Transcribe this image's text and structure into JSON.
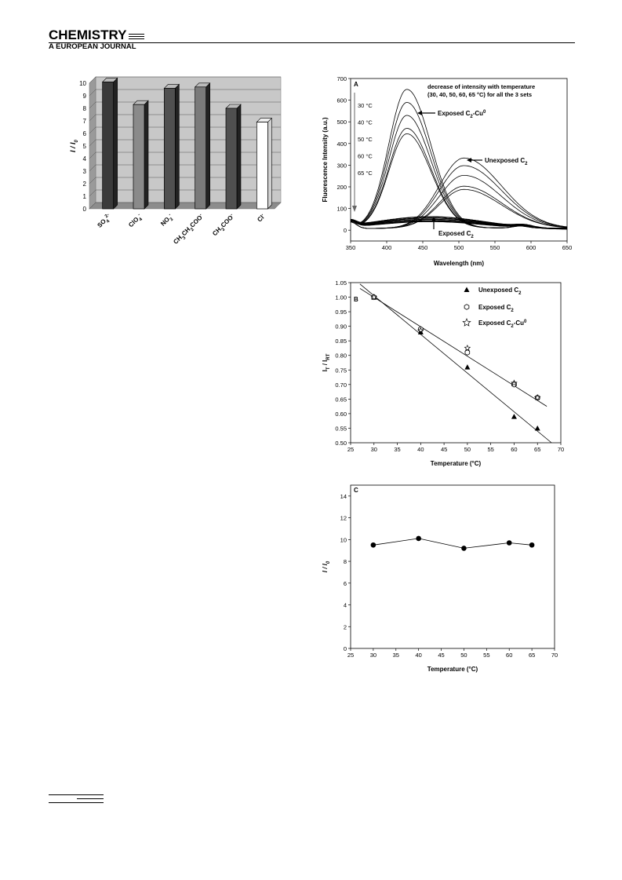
{
  "header": {
    "title": "CHEMISTRY",
    "subtitle": "A EUROPEAN JOURNAL"
  },
  "chart_data": [
    {
      "type": "bar",
      "panel": "3d-bar",
      "categories": [
        "SO",
        "ClO",
        "NO",
        "CH₃CH₂COO⁻",
        "CH₃COO",
        "Cl⁻"
      ],
      "category_labels": [
        {
          "base": "SO",
          "sup": "2-",
          "sub": "4",
          "full": "SO42-"
        },
        {
          "base": "ClO",
          "sup": "-",
          "sub": "4",
          "full": "ClO4-"
        },
        {
          "base": "NO",
          "sup": "-",
          "sub": "3",
          "full": "NO3-"
        },
        {
          "base": "CH",
          "full": "CH3CH2COO-",
          "mid": "CH",
          "mid2": "COO",
          "sup": "-"
        },
        {
          "base": "CH",
          "full": "CH3COO-",
          "mid2": "COO",
          "sup": "-"
        },
        {
          "base": "Cl",
          "sup": "-",
          "full": "Cl-"
        }
      ],
      "values": [
        10.1,
        8.3,
        9.6,
        9.7,
        8.0,
        6.9
      ],
      "colors": [
        "#3a3a3a",
        "#8a8a8a",
        "#505050",
        "#7a7a7a",
        "#505050",
        "#ffffff"
      ],
      "ylabel": "I / I₀",
      "ylabel_main": "I / I",
      "ylabel_sub": "0",
      "ylim": [
        0,
        10
      ],
      "yticks": [
        "0",
        "1",
        "2",
        "3",
        "4",
        "5",
        "6",
        "7",
        "8",
        "9",
        "10"
      ],
      "grid": true
    },
    {
      "type": "line",
      "panel": "A",
      "panel_letter": "A",
      "xlabel": "Wavelength (nm)",
      "ylabel": "Fluorescence Intensity (a.u.)",
      "xlim": [
        350,
        650
      ],
      "ylim": [
        -50,
        700
      ],
      "xticks": [
        "350",
        "400",
        "450",
        "500",
        "550",
        "600",
        "650"
      ],
      "yticks": [
        "0",
        "100",
        "200",
        "300",
        "400",
        "500",
        "600",
        "700"
      ],
      "annotation_lines": [
        "decrease of intensity with temperature",
        "(30, 40, 50, 60, 65 °C) for all the 3 sets"
      ],
      "temperature_labels": [
        "30 °C",
        "40 °C",
        "50 °C",
        "60 °C",
        "65 °C"
      ],
      "series_labels": [
        {
          "text": "Exposed C",
          "sub": "2",
          "rest": "-Cu",
          "sup": "0"
        },
        {
          "text": "Unexposed C",
          "sub": "2"
        },
        {
          "text": "Exposed C",
          "sub": "2"
        }
      ],
      "series": [
        {
          "group": "Exposed C2-Cu0",
          "peak_x": 428,
          "peaks": [
            640,
            580,
            520,
            460,
            435
          ],
          "width": 30
        },
        {
          "group": "Unexposed C2",
          "peak_x": 507,
          "peaks": [
            325,
            290,
            245,
            195,
            180
          ],
          "width": 44
        },
        {
          "group": "Exposed C2",
          "peak_x": 460,
          "peaks": [
            58,
            52,
            46,
            40,
            36
          ],
          "width": 70
        }
      ]
    },
    {
      "type": "scatter",
      "panel": "B",
      "panel_letter": "B",
      "xlabel": "Temperature (°C)",
      "ylabel_main": "I",
      "ylabel_sub1": "T",
      "ylabel_mid": " / I",
      "ylabel_sub2": "RT",
      "xlim": [
        25,
        70
      ],
      "ylim": [
        0.5,
        1.05
      ],
      "xticks": [
        "25",
        "30",
        "35",
        "40",
        "45",
        "50",
        "55",
        "60",
        "65",
        "70"
      ],
      "yticks": [
        "0.50",
        "0.55",
        "0.60",
        "0.65",
        "0.70",
        "0.75",
        "0.80",
        "0.85",
        "0.90",
        "0.95",
        "1.00",
        "1.05"
      ],
      "legend": [
        {
          "text": "Unexposed C",
          "sub": "2",
          "marker": "triangle"
        },
        {
          "text": "Exposed C",
          "sub": "2",
          "marker": "hexagon"
        },
        {
          "text": "Exposed C",
          "sub": "2",
          "rest": "-Cu",
          "sup": "0",
          "marker": "star"
        }
      ],
      "series": [
        {
          "name": "Unexposed C2",
          "marker": "triangle",
          "x": [
            30,
            40,
            50,
            60,
            65
          ],
          "y": [
            1.0,
            0.88,
            0.76,
            0.59,
            0.55
          ]
        },
        {
          "name": "Exposed C2",
          "marker": "hexagon",
          "x": [
            30,
            40,
            50,
            60,
            65
          ],
          "y": [
            1.0,
            0.89,
            0.81,
            0.7,
            0.655
          ]
        },
        {
          "name": "Exposed C2-Cu0",
          "marker": "star",
          "x": [
            30,
            40,
            50,
            60,
            65
          ],
          "y": [
            1.0,
            0.885,
            0.825,
            0.705,
            0.655
          ]
        }
      ],
      "fit_lines": [
        {
          "x": [
            27,
            68
          ],
          "y": [
            1.045,
            0.5
          ]
        },
        {
          "x": [
            27,
            67
          ],
          "y": [
            1.03,
            0.625
          ]
        }
      ]
    },
    {
      "type": "line",
      "panel": "C",
      "panel_letter": "C",
      "xlabel": "Temperature (°C)",
      "ylabel_main": "I / I",
      "ylabel_sub": "0",
      "xlim": [
        25,
        70
      ],
      "ylim": [
        0,
        15
      ],
      "xticks": [
        "25",
        "30",
        "35",
        "40",
        "45",
        "50",
        "55",
        "60",
        "65",
        "70"
      ],
      "yticks": [
        "0",
        "2",
        "4",
        "6",
        "8",
        "10",
        "12",
        "14"
      ],
      "x": [
        30,
        40,
        50,
        60,
        65
      ],
      "y": [
        9.5,
        10.1,
        9.2,
        9.7,
        9.5
      ]
    }
  ]
}
